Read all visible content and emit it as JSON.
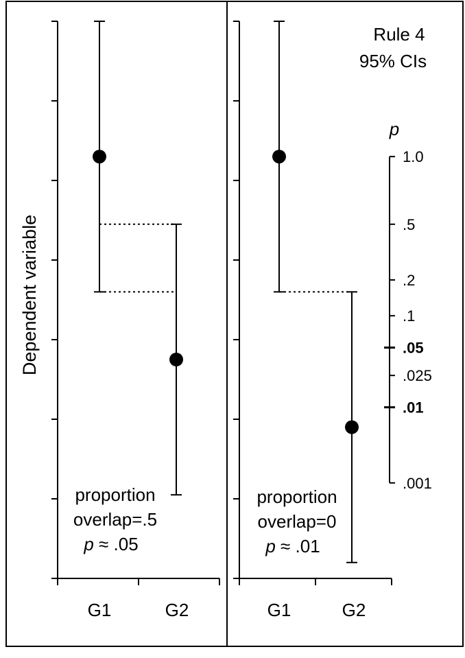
{
  "chart_data": [
    {
      "type": "error-bar",
      "ylabel": "Dependent variable",
      "categories": [
        "G1",
        "G2"
      ],
      "ylim": [
        0,
        7
      ],
      "y_ticks": [
        0,
        1,
        2,
        3,
        4,
        5,
        6,
        7
      ],
      "points": [
        {
          "category": "G1",
          "mean": 5.3,
          "ci_low": 3.6,
          "ci_high": 7.0
        },
        {
          "category": "G2",
          "mean": 2.75,
          "ci_low": 1.05,
          "ci_high": 4.45
        }
      ],
      "overlap_lines": [
        4.45,
        3.6
      ],
      "annotation": [
        "proportion",
        "overlap=.5",
        "p ≈ .05"
      ]
    },
    {
      "type": "error-bar",
      "title": [
        "Rule 4",
        "95% CIs"
      ],
      "categories": [
        "G1",
        "G2"
      ],
      "ylim": [
        0,
        7
      ],
      "y_ticks": [
        0,
        1,
        2,
        3,
        4,
        5,
        6,
        7
      ],
      "points": [
        {
          "category": "G1",
          "mean": 5.3,
          "ci_low": 3.6,
          "ci_high": 7.0
        },
        {
          "category": "G2",
          "mean": 1.9,
          "ci_low": 0.2,
          "ci_high": 3.6
        }
      ],
      "overlap_lines": [
        3.6
      ],
      "annotation": [
        "proportion",
        "overlap=0",
        "p ≈ .01"
      ],
      "p_scale": {
        "label": "p",
        "ticks": [
          {
            "label": "1.0",
            "y": 5.3,
            "bold": false
          },
          {
            "label": ".5",
            "y": 4.45,
            "bold": false
          },
          {
            "label": ".2",
            "y": 3.75,
            "bold": false
          },
          {
            "label": ".1",
            "y": 3.3,
            "bold": false
          },
          {
            "label": ".05",
            "y": 2.9,
            "bold": true
          },
          {
            "label": ".025",
            "y": 2.55,
            "bold": false
          },
          {
            "label": ".01",
            "y": 2.15,
            "bold": true
          },
          {
            "label": ".001",
            "y": 1.2,
            "bold": false
          }
        ]
      }
    }
  ]
}
